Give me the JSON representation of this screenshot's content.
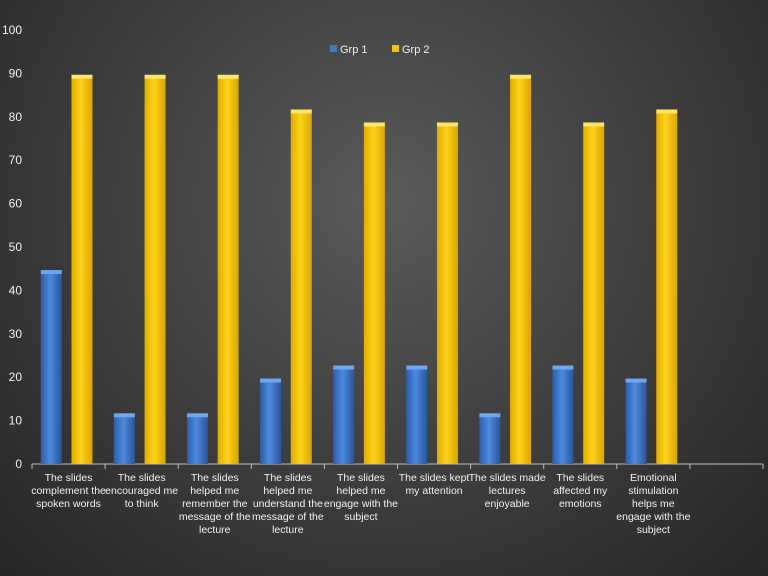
{
  "chart_data": {
    "type": "bar",
    "categories": [
      "The slides complement the spoken words",
      "The slides encouraged me to think",
      "The slides helped me remember the message of the lecture",
      "The slides helped me understand the message of the lecture",
      "The slides helped me engage with the subject",
      "The slides kept my attention",
      "The slides made lectures enjoyable",
      "The slides affected my emotions",
      "Emotional stimulation helps me engage with the subject"
    ],
    "category_lines": [
      [
        "The slides",
        "complement the",
        "spoken words"
      ],
      [
        "The slides",
        "encouraged me",
        "to think"
      ],
      [
        "The slides",
        "helped me",
        "remember the",
        "message of the",
        "lecture"
      ],
      [
        "The slides",
        "helped me",
        "understand the",
        "message of the",
        "lecture"
      ],
      [
        "The slides",
        "helped me",
        "engage with the",
        "subject"
      ],
      [
        "The slides kept",
        "my attention"
      ],
      [
        "The slides made",
        "lectures",
        "enjoyable"
      ],
      [
        "The slides",
        "affected my",
        "emotions"
      ],
      [
        "Emotional",
        "stimulation",
        "helps me",
        "engage with the",
        "subject"
      ]
    ],
    "series": [
      {
        "name": "Grp 1",
        "values": [
          44,
          11,
          11,
          19,
          22,
          22,
          11,
          22,
          19
        ],
        "color": "#3f78c8"
      },
      {
        "name": "Grp 2",
        "values": [
          89,
          89,
          89,
          81,
          78,
          78,
          89,
          78,
          81
        ],
        "color": "#f5c200"
      }
    ],
    "title": "",
    "xlabel": "",
    "ylabel": "",
    "ylim": [
      0,
      100
    ],
    "yticks": [
      0,
      10,
      20,
      30,
      40,
      50,
      60,
      70,
      80,
      90,
      100
    ],
    "grid": false,
    "legend_position": "top-center"
  }
}
